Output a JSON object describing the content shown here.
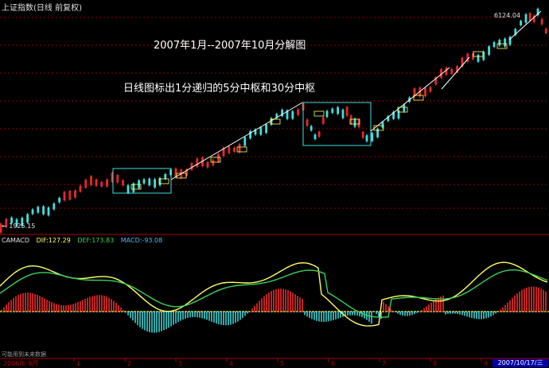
{
  "window": {
    "title": "上证指数(日线 前复权)"
  },
  "annotations": {
    "line1": "2007年1月--2007年10月分解图",
    "line2": "日线图标出1分递归的5分中枢和30分中枢"
  },
  "price_labels": {
    "peak": "6124.04",
    "low": "1925.15"
  },
  "indicator": {
    "name": "CAMACD",
    "dif": "DIF:127.29",
    "dea": "DEF:173.83",
    "macd": "MACD:-93.08",
    "dif_color": "#ffff66",
    "dea_color": "#3cd25a",
    "macd_color": "#4db8ff"
  },
  "axis": {
    "start_label": "2006年 9月",
    "month_ticks": [
      "1",
      "2",
      "3",
      "4",
      "5",
      "6",
      "7",
      "8",
      "9"
    ],
    "end_date": "2007/10/17/三"
  },
  "footer": {
    "note": "可能用到未来数据"
  },
  "colors": {
    "background": "#000000",
    "up_candle": "#ff3030",
    "down_candle": "#40e0e0",
    "pivot_box": "#40e0e0",
    "stroke_line": "#ffffff",
    "grid": "#8b0000",
    "highlight_date": "#0000a8"
  }
}
